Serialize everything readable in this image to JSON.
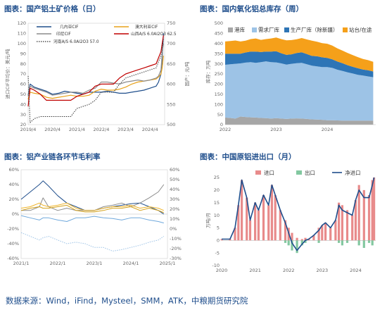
{
  "footer": "数据来源：Wind，iFind，Mysteel，SMM，ATK，中粮期货研究院",
  "chart_data": [
    {
      "type": "line",
      "title": "图表：国产铝土矿价格（日）",
      "ylabel": "进口CIF平均价：美元/吨",
      "y2label": "国产：元/吨",
      "xticks": [
        "2019/4",
        "2020/4",
        "2021/4",
        "2022/4",
        "2023/4",
        "2024/4"
      ],
      "ylim": [
        20,
        120
      ],
      "yticks": [
        20,
        30,
        40,
        50,
        60,
        70,
        80,
        90,
        100,
        110,
        120
      ],
      "y2lim": [
        500,
        750
      ],
      "y2ticks": [
        500,
        550,
        600,
        650,
        700,
        750
      ],
      "x": [
        2019.25,
        2019.33,
        2019.5,
        2019.75,
        2020.0,
        2020.25,
        2020.5,
        2020.75,
        2021.0,
        2021.25,
        2021.5,
        2021.75,
        2022.0,
        2022.25,
        2022.5,
        2022.75,
        2023.0,
        2023.25,
        2023.5,
        2023.75,
        2024.0,
        2024.25,
        2024.5,
        2024.6,
        2024.7,
        2024.75,
        2024.8
      ],
      "series": [
        {
          "name": "几内亚CIF",
          "color": "#1f4e8c",
          "axis": "left",
          "values": [
            49,
            60,
            57,
            55,
            53,
            50,
            51,
            53,
            52,
            51,
            50,
            52,
            52,
            52,
            53,
            52,
            51,
            51,
            52,
            53,
            54,
            56,
            58,
            62,
            70,
            85,
            110
          ]
        },
        {
          "name": "澳大利亚CIF",
          "color": "#e8a21a",
          "axis": "left",
          "values": [
            45,
            52,
            51,
            50,
            47,
            46,
            47,
            48,
            49,
            48,
            48,
            49,
            53,
            55,
            54,
            54,
            55,
            57,
            60,
            62,
            63,
            64,
            65,
            67,
            70,
            76,
            88
          ]
        },
        {
          "name": "印尼CIF",
          "color": "#8c8c8c",
          "axis": "left",
          "values": [
            48,
            58,
            56,
            54,
            52,
            49,
            50,
            51,
            52,
            52,
            51,
            54,
            56,
            62,
            62,
            61,
            60,
            62,
            63,
            64,
            63,
            64,
            66,
            68,
            74,
            90,
            100
          ]
        },
        {
          "name": "山西A/S 6.0Al2O3 62.5",
          "color": "#c00000",
          "axis": "right",
          "values": [
            545,
            590,
            585,
            575,
            560,
            560,
            560,
            560,
            560,
            570,
            575,
            580,
            595,
            600,
            600,
            600,
            615,
            625,
            630,
            635,
            640,
            645,
            650,
            665,
            680,
            700,
            720
          ]
        },
        {
          "name": "河南A/S 6.0Al2O3 57.0",
          "color": "#333333",
          "axis": "right",
          "dash": true,
          "values": [
            620,
            505,
            515,
            520,
            520,
            520,
            520,
            520,
            520,
            540,
            545,
            550,
            560,
            580,
            580,
            580,
            600,
            615,
            620,
            625,
            630,
            635,
            640,
            655,
            670,
            690,
            710
          ]
        }
      ]
    },
    {
      "type": "area",
      "title": "图表：国内氧化铝总库存（周）",
      "ylabel": "库存：万吨",
      "xticks": [
        "2022",
        "2023",
        "2024"
      ],
      "xlim": [
        2022.0,
        2024.95
      ],
      "ylim": [
        0,
        500
      ],
      "yticks": [
        0,
        50,
        100,
        150,
        200,
        250,
        300,
        350,
        400,
        450,
        500
      ],
      "x": [
        2022.0,
        2022.1,
        2022.2,
        2022.3,
        2022.4,
        2022.5,
        2022.6,
        2022.7,
        2022.8,
        2022.9,
        2023.0,
        2023.1,
        2023.2,
        2023.3,
        2023.4,
        2023.5,
        2023.6,
        2023.7,
        2023.8,
        2023.9,
        2024.0,
        2024.1,
        2024.2,
        2024.3,
        2024.4,
        2024.5,
        2024.6,
        2024.7,
        2024.8,
        2024.9
      ],
      "series": [
        {
          "name": "港库",
          "color": "#a6a6a6",
          "values": [
            35,
            33,
            30,
            40,
            38,
            36,
            35,
            33,
            32,
            30,
            32,
            30,
            28,
            30,
            31,
            30,
            28,
            26,
            25,
            24,
            22,
            22,
            21,
            20,
            20,
            20,
            20,
            20,
            20,
            20
          ]
        },
        {
          "name": "需求厂库",
          "color": "#9dc3e6",
          "values": [
            260,
            265,
            270,
            262,
            268,
            272,
            270,
            275,
            280,
            278,
            275,
            272,
            268,
            270,
            272,
            275,
            270,
            265,
            262,
            260,
            262,
            258,
            250,
            245,
            238,
            232,
            226,
            222,
            218,
            214
          ]
        },
        {
          "name": "生产厂库（除新疆）",
          "color": "#2e75b6",
          "values": [
            55,
            52,
            50,
            48,
            50,
            52,
            55,
            50,
            48,
            52,
            55,
            50,
            48,
            47,
            50,
            52,
            50,
            48,
            50,
            48,
            45,
            42,
            40,
            38,
            35,
            33,
            32,
            30,
            30,
            28
          ]
        },
        {
          "name": "站台/在途",
          "color": "#f5a01a",
          "values": [
            60,
            62,
            65,
            60,
            58,
            62,
            65,
            60,
            62,
            65,
            68,
            70,
            72,
            70,
            68,
            70,
            72,
            75,
            72,
            70,
            70,
            68,
            65,
            62,
            60,
            58,
            55,
            52,
            50,
            48
          ]
        }
      ]
    },
    {
      "type": "line",
      "title": "图表：铝产业链各环节毛利率",
      "xticks": [
        "2021/1",
        "2022/1",
        "2023/1",
        "2024/1",
        "2025/1"
      ],
      "xlim": [
        2021.0,
        2025.0
      ],
      "ylim": [
        -60,
        60
      ],
      "yticks": [
        "-60%",
        "-40%",
        "-20%",
        "0%",
        "20%",
        "40%",
        "60%"
      ],
      "y2ticks": [
        "-30%",
        "-20%",
        "-10%",
        "0%",
        "10%",
        "20%",
        "30%",
        "40%",
        "50%",
        "60%"
      ],
      "x": [
        2021.0,
        2021.25,
        2021.5,
        2021.6,
        2021.75,
        2022.0,
        2022.25,
        2022.5,
        2022.75,
        2023.0,
        2023.25,
        2023.5,
        2023.75,
        2024.0,
        2024.25,
        2024.5,
        2024.75,
        2024.9
      ],
      "series": [
        {
          "color": "#1f4e8c",
          "values": [
            20,
            30,
            40,
            45,
            38,
            25,
            15,
            10,
            5,
            5,
            8,
            10,
            12,
            14,
            15,
            10,
            5,
            0
          ]
        },
        {
          "color": "#8c8c8c",
          "values": [
            5,
            5,
            10,
            22,
            10,
            5,
            8,
            5,
            5,
            5,
            10,
            12,
            15,
            10,
            15,
            22,
            30,
            40
          ]
        },
        {
          "color": "#f0b429",
          "values": [
            8,
            10,
            15,
            12,
            10,
            12,
            15,
            8,
            5,
            5,
            8,
            10,
            10,
            12,
            8,
            10,
            8,
            5
          ]
        },
        {
          "color": "#d4a017",
          "values": [
            5,
            8,
            10,
            8,
            8,
            10,
            12,
            5,
            3,
            3,
            5,
            8,
            8,
            10,
            5,
            8,
            5,
            2
          ]
        },
        {
          "color": "#6fa8dc",
          "values": [
            -2,
            -5,
            -8,
            -5,
            -5,
            -8,
            -10,
            -5,
            -5,
            -3,
            -5,
            -6,
            -8,
            -5,
            -5,
            -8,
            -10,
            -12
          ]
        },
        {
          "color": "#9dc3e6",
          "dash": true,
          "values": [
            -25,
            -30,
            -35,
            -32,
            -30,
            -35,
            -40,
            -38,
            -40,
            -45,
            -45,
            -50,
            -48,
            -45,
            -42,
            -38,
            -35,
            -30
          ]
        }
      ]
    },
    {
      "type": "bar",
      "title": "图表：中国原铝进出口（月）",
      "ylabel": "万吨/月",
      "xticks": [
        "2020",
        "2021",
        "2022",
        "2023",
        "2024"
      ],
      "xlim": [
        2020.0,
        2024.6
      ],
      "ylim": [
        -10,
        25
      ],
      "yticks": [
        -10,
        -5,
        0,
        5,
        10,
        15,
        20,
        25
      ],
      "x": [
        2020.0,
        2020.25,
        2020.4,
        2020.5,
        2020.6,
        2020.75,
        2020.85,
        2021.0,
        2021.1,
        2021.25,
        2021.4,
        2021.5,
        2021.6,
        2021.75,
        2021.9,
        2022.0,
        2022.1,
        2022.25,
        2022.4,
        2022.5,
        2022.6,
        2022.75,
        2022.9,
        2023.0,
        2023.1,
        2023.25,
        2023.4,
        2023.5,
        2023.6,
        2023.75,
        2023.9,
        2024.0,
        2024.1,
        2024.25,
        2024.4,
        2024.5,
        2024.55
      ],
      "series": [
        {
          "name": "进口",
          "color": "#e88b8b",
          "values": [
            0.5,
            0.5,
            5,
            14,
            24,
            17,
            8,
            15,
            12,
            18,
            14,
            22,
            18,
            12,
            8,
            5,
            3,
            1,
            0.5,
            1,
            0.5,
            2,
            5,
            6,
            7,
            5,
            8,
            15,
            14,
            12,
            10,
            16,
            22,
            20,
            18,
            24,
            25
          ]
        },
        {
          "name": "出口",
          "color": "#82c8a0",
          "values": [
            0,
            0,
            0,
            0,
            0,
            0,
            0,
            0,
            0,
            0,
            0,
            0,
            0,
            0,
            -1,
            -2,
            -4,
            -5,
            -2,
            -1,
            0,
            0,
            -1,
            0,
            0,
            0,
            0,
            -1,
            -2,
            -1,
            0,
            0,
            -2,
            -3,
            -1,
            -2,
            0
          ]
        },
        {
          "name": "净进口",
          "color": "#1f4e8c",
          "line": true,
          "values": [
            0.5,
            0.5,
            5,
            14,
            24,
            17,
            8,
            15,
            12,
            18,
            14,
            22,
            18,
            12,
            7,
            3,
            -1,
            -4,
            -1.5,
            0,
            0.5,
            2,
            4,
            6,
            7,
            5,
            8,
            14,
            12,
            11,
            10,
            16,
            20,
            17,
            17,
            22,
            25
          ]
        }
      ]
    }
  ]
}
